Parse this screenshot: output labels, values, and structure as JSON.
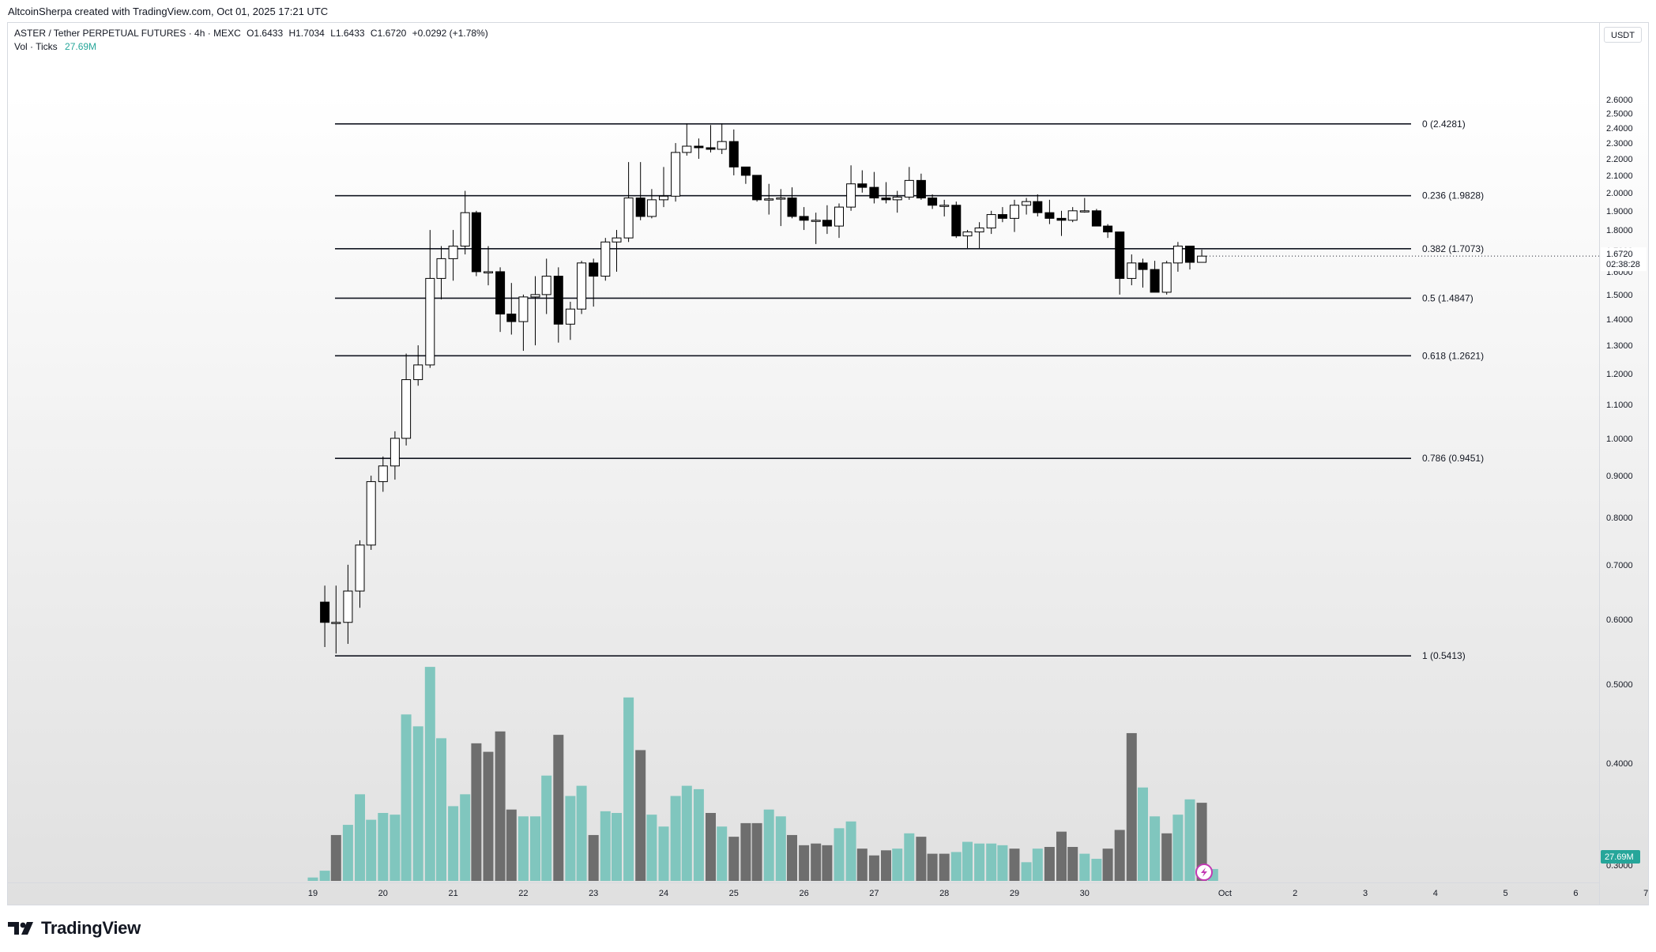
{
  "header": {
    "credit": "AltcoinSherpa created with TradingView.com, Oct 01, 2025 17:21 UTC"
  },
  "legend": {
    "symbol": "ASTER / Tether PERPETUAL FUTURES · 4h · MEXC",
    "open": "O1.6433",
    "high": "H1.7034",
    "low": "L1.6433",
    "close": "C1.6720",
    "change": "+0.0292 (+1.78%)",
    "vol_label": "Vol · Ticks",
    "vol_value": "27.69M"
  },
  "price_axis": {
    "currency": "USDT",
    "last_price": "1.6720",
    "countdown": "02:38:28",
    "volume_badge": "27.69M"
  },
  "brand": {
    "name": "TradingView"
  },
  "colors": {
    "up_body": "#ffffff",
    "down_body": "#000000",
    "vol_up": "#80c6be",
    "vol_down": "#6e6e6e",
    "line": "#131722",
    "badge": "#26a69a"
  },
  "chart_data": {
    "type": "candlestick",
    "y_axis": {
      "ticks": [
        "2.6000",
        "2.5000",
        "2.4000",
        "2.3000",
        "2.2000",
        "2.1000",
        "2.0000",
        "1.9000",
        "1.8000",
        "1.7000",
        "1.6000",
        "1.5000",
        "1.4000",
        "1.3000",
        "1.2000",
        "1.1000",
        "1.0000",
        "0.9000",
        "0.8000",
        "0.7000",
        "0.6000",
        "0.5000",
        "0.4000",
        "0.3000"
      ],
      "scale": "log"
    },
    "x_axis": {
      "ticks": [
        "19",
        "20",
        "21",
        "22",
        "23",
        "24",
        "25",
        "26",
        "27",
        "28",
        "29",
        "30",
        "Oct",
        "2",
        "3",
        "4",
        "5",
        "6",
        "7"
      ]
    },
    "fib_levels": [
      {
        "label": "0 (2.4281)",
        "value": 2.4281
      },
      {
        "label": "0.236 (1.9828)",
        "value": 1.9828
      },
      {
        "label": "0.382 (1.7073)",
        "value": 1.7073
      },
      {
        "label": "0.5 (1.4847)",
        "value": 1.4847
      },
      {
        "label": "0.618 (1.2621)",
        "value": 1.2621
      },
      {
        "label": "0.786 (0.9451)",
        "value": 0.9451
      },
      {
        "label": "1 (0.5413)",
        "value": 0.5413
      }
    ],
    "candles": [
      {
        "t": 19.17,
        "o": 0.63,
        "h": 0.66,
        "l": 0.555,
        "c": 0.595
      },
      {
        "t": 19.33,
        "o": 0.595,
        "h": 0.66,
        "l": 0.545,
        "c": 0.595
      },
      {
        "t": 19.5,
        "o": 0.595,
        "h": 0.7,
        "l": 0.56,
        "c": 0.65
      },
      {
        "t": 19.67,
        "o": 0.65,
        "h": 0.75,
        "l": 0.62,
        "c": 0.74
      },
      {
        "t": 19.83,
        "o": 0.74,
        "h": 0.9,
        "l": 0.73,
        "c": 0.885
      },
      {
        "t": 20.0,
        "o": 0.885,
        "h": 0.95,
        "l": 0.86,
        "c": 0.925
      },
      {
        "t": 20.17,
        "o": 0.925,
        "h": 1.02,
        "l": 0.89,
        "c": 1.0
      },
      {
        "t": 20.33,
        "o": 1.0,
        "h": 1.27,
        "l": 0.98,
        "c": 1.18
      },
      {
        "t": 20.5,
        "o": 1.18,
        "h": 1.3,
        "l": 1.16,
        "c": 1.23
      },
      {
        "t": 20.67,
        "o": 1.23,
        "h": 1.8,
        "l": 1.22,
        "c": 1.57
      },
      {
        "t": 20.83,
        "o": 1.57,
        "h": 1.72,
        "l": 1.48,
        "c": 1.66
      },
      {
        "t": 21.0,
        "o": 1.66,
        "h": 1.8,
        "l": 1.56,
        "c": 1.72
      },
      {
        "t": 21.17,
        "o": 1.72,
        "h": 2.01,
        "l": 1.68,
        "c": 1.89
      },
      {
        "t": 21.33,
        "o": 1.89,
        "h": 1.9,
        "l": 1.58,
        "c": 1.6
      },
      {
        "t": 21.5,
        "o": 1.6,
        "h": 1.72,
        "l": 1.54,
        "c": 1.6
      },
      {
        "t": 21.67,
        "o": 1.6,
        "h": 1.62,
        "l": 1.35,
        "c": 1.42
      },
      {
        "t": 21.83,
        "o": 1.42,
        "h": 1.55,
        "l": 1.34,
        "c": 1.39
      },
      {
        "t": 22.0,
        "o": 1.39,
        "h": 1.5,
        "l": 1.28,
        "c": 1.49
      },
      {
        "t": 22.17,
        "o": 1.49,
        "h": 1.58,
        "l": 1.3,
        "c": 1.5
      },
      {
        "t": 22.33,
        "o": 1.5,
        "h": 1.66,
        "l": 1.42,
        "c": 1.58
      },
      {
        "t": 22.5,
        "o": 1.58,
        "h": 1.62,
        "l": 1.31,
        "c": 1.38
      },
      {
        "t": 22.67,
        "o": 1.38,
        "h": 1.47,
        "l": 1.32,
        "c": 1.44
      },
      {
        "t": 22.83,
        "o": 1.44,
        "h": 1.65,
        "l": 1.42,
        "c": 1.64
      },
      {
        "t": 23.0,
        "o": 1.64,
        "h": 1.66,
        "l": 1.45,
        "c": 1.58
      },
      {
        "t": 23.17,
        "o": 1.58,
        "h": 1.76,
        "l": 1.56,
        "c": 1.74
      },
      {
        "t": 23.33,
        "o": 1.74,
        "h": 1.8,
        "l": 1.6,
        "c": 1.76
      },
      {
        "t": 23.5,
        "o": 1.76,
        "h": 2.18,
        "l": 1.74,
        "c": 1.97
      },
      {
        "t": 23.67,
        "o": 1.97,
        "h": 2.18,
        "l": 1.85,
        "c": 1.87
      },
      {
        "t": 23.83,
        "o": 1.87,
        "h": 2.02,
        "l": 1.86,
        "c": 1.96
      },
      {
        "t": 24.0,
        "o": 1.96,
        "h": 2.15,
        "l": 1.92,
        "c": 1.98
      },
      {
        "t": 24.17,
        "o": 1.98,
        "h": 2.3,
        "l": 1.95,
        "c": 2.24
      },
      {
        "t": 24.33,
        "o": 2.24,
        "h": 2.43,
        "l": 2.22,
        "c": 2.28
      },
      {
        "t": 24.5,
        "o": 2.28,
        "h": 2.33,
        "l": 2.2,
        "c": 2.27
      },
      {
        "t": 24.67,
        "o": 2.27,
        "h": 2.42,
        "l": 2.24,
        "c": 2.26
      },
      {
        "t": 24.83,
        "o": 2.26,
        "h": 2.43,
        "l": 2.23,
        "c": 2.31
      },
      {
        "t": 25.0,
        "o": 2.31,
        "h": 2.39,
        "l": 2.1,
        "c": 2.15
      },
      {
        "t": 25.17,
        "o": 2.15,
        "h": 2.15,
        "l": 2.05,
        "c": 2.1
      },
      {
        "t": 25.33,
        "o": 2.1,
        "h": 2.1,
        "l": 1.95,
        "c": 1.96
      },
      {
        "t": 25.5,
        "o": 1.96,
        "h": 2.05,
        "l": 1.88,
        "c": 1.965
      },
      {
        "t": 25.67,
        "o": 1.965,
        "h": 2.02,
        "l": 1.82,
        "c": 1.97
      },
      {
        "t": 25.83,
        "o": 1.97,
        "h": 2.03,
        "l": 1.86,
        "c": 1.87
      },
      {
        "t": 26.0,
        "o": 1.87,
        "h": 1.92,
        "l": 1.8,
        "c": 1.85
      },
      {
        "t": 26.17,
        "o": 1.85,
        "h": 1.89,
        "l": 1.73,
        "c": 1.85
      },
      {
        "t": 26.33,
        "o": 1.85,
        "h": 1.93,
        "l": 1.78,
        "c": 1.82
      },
      {
        "t": 26.5,
        "o": 1.82,
        "h": 1.94,
        "l": 1.76,
        "c": 1.92
      },
      {
        "t": 26.67,
        "o": 1.92,
        "h": 2.16,
        "l": 1.9,
        "c": 2.05
      },
      {
        "t": 26.83,
        "o": 2.05,
        "h": 2.13,
        "l": 2.0,
        "c": 2.03
      },
      {
        "t": 27.0,
        "o": 2.03,
        "h": 2.12,
        "l": 1.94,
        "c": 1.97
      },
      {
        "t": 27.17,
        "o": 1.97,
        "h": 2.06,
        "l": 1.94,
        "c": 1.96
      },
      {
        "t": 27.33,
        "o": 1.96,
        "h": 2.01,
        "l": 1.89,
        "c": 1.975
      },
      {
        "t": 27.5,
        "o": 1.975,
        "h": 2.15,
        "l": 1.96,
        "c": 2.07
      },
      {
        "t": 27.67,
        "o": 2.07,
        "h": 2.11,
        "l": 1.96,
        "c": 1.97
      },
      {
        "t": 27.83,
        "o": 1.97,
        "h": 1.99,
        "l": 1.91,
        "c": 1.93
      },
      {
        "t": 28.0,
        "o": 1.93,
        "h": 1.96,
        "l": 1.87,
        "c": 1.93
      },
      {
        "t": 28.17,
        "o": 1.93,
        "h": 1.95,
        "l": 1.76,
        "c": 1.77
      },
      {
        "t": 28.33,
        "o": 1.77,
        "h": 1.8,
        "l": 1.71,
        "c": 1.79
      },
      {
        "t": 28.5,
        "o": 1.79,
        "h": 1.84,
        "l": 1.71,
        "c": 1.81
      },
      {
        "t": 28.67,
        "o": 1.81,
        "h": 1.9,
        "l": 1.78,
        "c": 1.88
      },
      {
        "t": 28.83,
        "o": 1.88,
        "h": 1.92,
        "l": 1.84,
        "c": 1.86
      },
      {
        "t": 29.0,
        "o": 1.86,
        "h": 1.96,
        "l": 1.79,
        "c": 1.93
      },
      {
        "t": 29.17,
        "o": 1.93,
        "h": 1.97,
        "l": 1.88,
        "c": 1.95
      },
      {
        "t": 29.33,
        "o": 1.95,
        "h": 1.99,
        "l": 1.87,
        "c": 1.89
      },
      {
        "t": 29.5,
        "o": 1.89,
        "h": 1.96,
        "l": 1.83,
        "c": 1.86
      },
      {
        "t": 29.67,
        "o": 1.86,
        "h": 1.9,
        "l": 1.77,
        "c": 1.85
      },
      {
        "t": 29.83,
        "o": 1.85,
        "h": 1.92,
        "l": 1.84,
        "c": 1.9
      },
      {
        "t": 30.0,
        "o": 1.9,
        "h": 1.97,
        "l": 1.89,
        "c": 1.9
      },
      {
        "t": 30.17,
        "o": 1.9,
        "h": 1.91,
        "l": 1.82,
        "c": 1.82
      },
      {
        "t": 30.33,
        "o": 1.82,
        "h": 1.83,
        "l": 1.76,
        "c": 1.79
      },
      {
        "t": 30.5,
        "o": 1.79,
        "h": 1.79,
        "l": 1.5,
        "c": 1.57
      },
      {
        "t": 30.67,
        "o": 1.57,
        "h": 1.68,
        "l": 1.54,
        "c": 1.64
      },
      {
        "t": 30.83,
        "o": 1.64,
        "h": 1.66,
        "l": 1.53,
        "c": 1.61
      },
      {
        "t": 31.0,
        "o": 1.61,
        "h": 1.65,
        "l": 1.51,
        "c": 1.51
      },
      {
        "t": 31.17,
        "o": 1.51,
        "h": 1.65,
        "l": 1.5,
        "c": 1.64
      },
      {
        "t": 31.33,
        "o": 1.64,
        "h": 1.74,
        "l": 1.6,
        "c": 1.72
      },
      {
        "t": 31.5,
        "o": 1.72,
        "h": 1.72,
        "l": 1.61,
        "c": 1.643
      },
      {
        "t": 31.67,
        "o": 1.643,
        "h": 1.703,
        "l": 1.643,
        "c": 1.672
      }
    ],
    "volume": [
      {
        "t": 19.0,
        "v": 2,
        "up": true
      },
      {
        "t": 19.17,
        "v": 6,
        "up": true
      },
      {
        "t": 19.33,
        "v": 27,
        "up": false
      },
      {
        "t": 19.5,
        "v": 33,
        "up": true
      },
      {
        "t": 19.67,
        "v": 51,
        "up": true
      },
      {
        "t": 19.83,
        "v": 36,
        "up": true
      },
      {
        "t": 20.0,
        "v": 40,
        "up": true
      },
      {
        "t": 20.17,
        "v": 39,
        "up": true
      },
      {
        "t": 20.33,
        "v": 98,
        "up": true
      },
      {
        "t": 20.5,
        "v": 91,
        "up": true
      },
      {
        "t": 20.67,
        "v": 126,
        "up": true
      },
      {
        "t": 20.83,
        "v": 84,
        "up": true
      },
      {
        "t": 21.0,
        "v": 44,
        "up": true
      },
      {
        "t": 21.17,
        "v": 51,
        "up": true
      },
      {
        "t": 21.33,
        "v": 81,
        "up": false
      },
      {
        "t": 21.5,
        "v": 76,
        "up": false
      },
      {
        "t": 21.67,
        "v": 88,
        "up": false
      },
      {
        "t": 21.83,
        "v": 42,
        "up": false
      },
      {
        "t": 22.0,
        "v": 38,
        "up": true
      },
      {
        "t": 22.17,
        "v": 38,
        "up": true
      },
      {
        "t": 22.33,
        "v": 62,
        "up": true
      },
      {
        "t": 22.5,
        "v": 86,
        "up": false
      },
      {
        "t": 22.67,
        "v": 50,
        "up": true
      },
      {
        "t": 22.83,
        "v": 56,
        "up": true
      },
      {
        "t": 23.0,
        "v": 27,
        "up": false
      },
      {
        "t": 23.17,
        "v": 41,
        "up": true
      },
      {
        "t": 23.33,
        "v": 40,
        "up": true
      },
      {
        "t": 23.5,
        "v": 108,
        "up": true
      },
      {
        "t": 23.67,
        "v": 77,
        "up": false
      },
      {
        "t": 23.83,
        "v": 39,
        "up": true
      },
      {
        "t": 24.0,
        "v": 32,
        "up": true
      },
      {
        "t": 24.17,
        "v": 50,
        "up": true
      },
      {
        "t": 24.33,
        "v": 56,
        "up": true
      },
      {
        "t": 24.5,
        "v": 54,
        "up": true
      },
      {
        "t": 24.67,
        "v": 40,
        "up": false
      },
      {
        "t": 24.83,
        "v": 32,
        "up": true
      },
      {
        "t": 25.0,
        "v": 26,
        "up": false
      },
      {
        "t": 25.17,
        "v": 34,
        "up": false
      },
      {
        "t": 25.33,
        "v": 34,
        "up": false
      },
      {
        "t": 25.5,
        "v": 42,
        "up": true
      },
      {
        "t": 25.67,
        "v": 38,
        "up": true
      },
      {
        "t": 25.83,
        "v": 27,
        "up": false
      },
      {
        "t": 26.0,
        "v": 21,
        "up": false
      },
      {
        "t": 26.17,
        "v": 22,
        "up": false
      },
      {
        "t": 26.33,
        "v": 21,
        "up": false
      },
      {
        "t": 26.5,
        "v": 31,
        "up": true
      },
      {
        "t": 26.67,
        "v": 35,
        "up": true
      },
      {
        "t": 26.83,
        "v": 19,
        "up": false
      },
      {
        "t": 27.0,
        "v": 15,
        "up": false
      },
      {
        "t": 27.17,
        "v": 18,
        "up": false
      },
      {
        "t": 27.33,
        "v": 19,
        "up": true
      },
      {
        "t": 27.5,
        "v": 28,
        "up": true
      },
      {
        "t": 27.67,
        "v": 26,
        "up": false
      },
      {
        "t": 27.83,
        "v": 16,
        "up": false
      },
      {
        "t": 28.0,
        "v": 16,
        "up": false
      },
      {
        "t": 28.17,
        "v": 17,
        "up": true
      },
      {
        "t": 28.33,
        "v": 23,
        "up": true
      },
      {
        "t": 28.5,
        "v": 22,
        "up": true
      },
      {
        "t": 28.67,
        "v": 22,
        "up": true
      },
      {
        "t": 28.83,
        "v": 21,
        "up": true
      },
      {
        "t": 29.0,
        "v": 19,
        "up": false
      },
      {
        "t": 29.17,
        "v": 11,
        "up": true
      },
      {
        "t": 29.33,
        "v": 19,
        "up": true
      },
      {
        "t": 29.5,
        "v": 20,
        "up": false
      },
      {
        "t": 29.67,
        "v": 29,
        "up": false
      },
      {
        "t": 29.83,
        "v": 20,
        "up": false
      },
      {
        "t": 30.0,
        "v": 16,
        "up": true
      },
      {
        "t": 30.17,
        "v": 13,
        "up": true
      },
      {
        "t": 30.33,
        "v": 19,
        "up": false
      },
      {
        "t": 30.5,
        "v": 30,
        "up": false
      },
      {
        "t": 30.67,
        "v": 87,
        "up": false
      },
      {
        "t": 30.83,
        "v": 55,
        "up": true
      },
      {
        "t": 31.0,
        "v": 38,
        "up": true
      },
      {
        "t": 31.17,
        "v": 28,
        "up": false
      },
      {
        "t": 31.33,
        "v": 39,
        "up": true
      },
      {
        "t": 31.5,
        "v": 48,
        "up": true
      },
      {
        "t": 31.67,
        "v": 46,
        "up": false
      },
      {
        "t": 31.83,
        "v": 7,
        "up": true
      }
    ]
  }
}
